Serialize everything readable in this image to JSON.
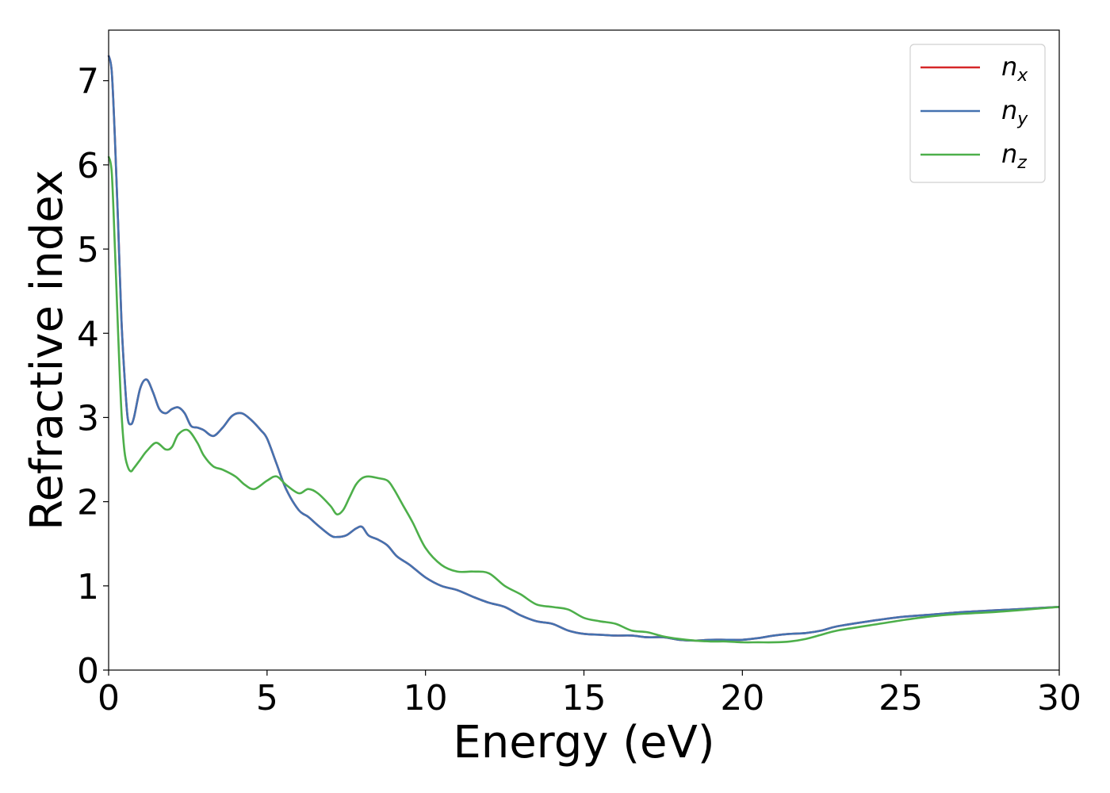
{
  "chart_data": {
    "type": "line",
    "title": "",
    "xlabel": "Energy (eV)",
    "ylabel": "Refractive index",
    "xlim": [
      0,
      30
    ],
    "ylim": [
      0,
      7.6
    ],
    "xticks": [
      0,
      5,
      10,
      15,
      20,
      25,
      30
    ],
    "yticks": [
      0,
      1,
      2,
      3,
      4,
      5,
      6,
      7
    ],
    "grid": false,
    "legend_position": "top-right",
    "series": [
      {
        "name": "n",
        "subscript": "x",
        "color": "#d62728",
        "x": [
          0,
          0.1,
          0.2,
          0.3,
          0.4,
          0.5,
          0.6,
          0.7,
          0.8,
          1.0,
          1.2,
          1.4,
          1.6,
          1.8,
          2.0,
          2.2,
          2.4,
          2.6,
          2.8,
          3.0,
          3.3,
          3.6,
          3.9,
          4.2,
          4.5,
          4.8,
          5.0,
          5.3,
          5.6,
          6.0,
          6.3,
          6.6,
          7.0,
          7.2,
          7.5,
          7.8,
          8.0,
          8.2,
          8.5,
          8.8,
          9.1,
          9.5,
          10.0,
          10.5,
          11.0,
          11.5,
          12.0,
          12.5,
          13.0,
          13.5,
          14.0,
          14.5,
          15.0,
          15.5,
          16.0,
          16.5,
          17.0,
          17.5,
          18.0,
          18.5,
          19.0,
          19.5,
          20.0,
          20.5,
          21.0,
          21.5,
          22.0,
          22.5,
          23.0,
          24.0,
          25.0,
          26.0,
          27.0,
          28.0,
          29.0,
          30.0
        ],
        "y": [
          7.3,
          7.1,
          6.3,
          5.3,
          4.2,
          3.5,
          3.0,
          2.92,
          3.0,
          3.35,
          3.45,
          3.3,
          3.1,
          3.05,
          3.1,
          3.12,
          3.05,
          2.9,
          2.88,
          2.85,
          2.78,
          2.88,
          3.02,
          3.05,
          2.97,
          2.85,
          2.75,
          2.45,
          2.15,
          1.9,
          1.82,
          1.72,
          1.6,
          1.58,
          1.6,
          1.68,
          1.7,
          1.6,
          1.55,
          1.48,
          1.35,
          1.25,
          1.1,
          1.0,
          0.95,
          0.87,
          0.8,
          0.75,
          0.65,
          0.58,
          0.55,
          0.47,
          0.43,
          0.42,
          0.41,
          0.41,
          0.39,
          0.39,
          0.36,
          0.35,
          0.36,
          0.36,
          0.36,
          0.38,
          0.41,
          0.43,
          0.44,
          0.47,
          0.52,
          0.58,
          0.63,
          0.66,
          0.69,
          0.71,
          0.73,
          0.75
        ]
      },
      {
        "name": "n",
        "subscript": "y",
        "color": "#4472b0",
        "x": [
          0,
          0.1,
          0.2,
          0.3,
          0.4,
          0.5,
          0.6,
          0.7,
          0.8,
          1.0,
          1.2,
          1.4,
          1.6,
          1.8,
          2.0,
          2.2,
          2.4,
          2.6,
          2.8,
          3.0,
          3.3,
          3.6,
          3.9,
          4.2,
          4.5,
          4.8,
          5.0,
          5.3,
          5.6,
          6.0,
          6.3,
          6.6,
          7.0,
          7.2,
          7.5,
          7.8,
          8.0,
          8.2,
          8.5,
          8.8,
          9.1,
          9.5,
          10.0,
          10.5,
          11.0,
          11.5,
          12.0,
          12.5,
          13.0,
          13.5,
          14.0,
          14.5,
          15.0,
          15.5,
          16.0,
          16.5,
          17.0,
          17.5,
          18.0,
          18.5,
          19.0,
          19.5,
          20.0,
          20.5,
          21.0,
          21.5,
          22.0,
          22.5,
          23.0,
          24.0,
          25.0,
          26.0,
          27.0,
          28.0,
          29.0,
          30.0
        ],
        "y": [
          7.3,
          7.1,
          6.3,
          5.3,
          4.2,
          3.5,
          3.0,
          2.92,
          3.0,
          3.35,
          3.45,
          3.3,
          3.1,
          3.05,
          3.1,
          3.12,
          3.05,
          2.9,
          2.88,
          2.85,
          2.78,
          2.88,
          3.02,
          3.05,
          2.97,
          2.85,
          2.75,
          2.45,
          2.15,
          1.9,
          1.82,
          1.72,
          1.6,
          1.58,
          1.6,
          1.68,
          1.7,
          1.6,
          1.55,
          1.48,
          1.35,
          1.25,
          1.1,
          1.0,
          0.95,
          0.87,
          0.8,
          0.75,
          0.65,
          0.58,
          0.55,
          0.47,
          0.43,
          0.42,
          0.41,
          0.41,
          0.39,
          0.39,
          0.36,
          0.35,
          0.36,
          0.36,
          0.36,
          0.38,
          0.41,
          0.43,
          0.44,
          0.47,
          0.52,
          0.58,
          0.63,
          0.66,
          0.69,
          0.71,
          0.73,
          0.75
        ]
      },
      {
        "name": "n",
        "subscript": "z",
        "color": "#4daf4a",
        "x": [
          0,
          0.1,
          0.2,
          0.3,
          0.4,
          0.5,
          0.6,
          0.7,
          0.8,
          1.0,
          1.2,
          1.5,
          1.8,
          2.0,
          2.2,
          2.5,
          2.8,
          3.0,
          3.3,
          3.6,
          4.0,
          4.3,
          4.6,
          5.0,
          5.3,
          5.6,
          6.0,
          6.3,
          6.6,
          7.0,
          7.2,
          7.4,
          7.6,
          7.8,
          8.0,
          8.2,
          8.5,
          8.8,
          9.0,
          9.3,
          9.6,
          10.0,
          10.5,
          11.0,
          11.5,
          12.0,
          12.5,
          13.0,
          13.5,
          14.0,
          14.5,
          15.0,
          15.5,
          16.0,
          16.5,
          17.0,
          17.5,
          18.0,
          18.5,
          19.0,
          19.5,
          20.0,
          20.5,
          21.0,
          21.5,
          22.0,
          22.5,
          23.0,
          24.0,
          25.0,
          26.0,
          27.0,
          28.0,
          29.0,
          30.0
        ],
        "y": [
          6.1,
          5.9,
          5.0,
          4.0,
          3.1,
          2.6,
          2.42,
          2.36,
          2.4,
          2.5,
          2.6,
          2.7,
          2.62,
          2.65,
          2.8,
          2.85,
          2.7,
          2.55,
          2.42,
          2.38,
          2.3,
          2.2,
          2.15,
          2.25,
          2.3,
          2.2,
          2.1,
          2.15,
          2.1,
          1.95,
          1.85,
          1.9,
          2.05,
          2.2,
          2.28,
          2.3,
          2.28,
          2.25,
          2.15,
          1.95,
          1.75,
          1.45,
          1.25,
          1.17,
          1.17,
          1.15,
          1.0,
          0.9,
          0.78,
          0.75,
          0.72,
          0.62,
          0.58,
          0.55,
          0.47,
          0.45,
          0.4,
          0.37,
          0.35,
          0.34,
          0.34,
          0.33,
          0.33,
          0.33,
          0.34,
          0.37,
          0.42,
          0.47,
          0.53,
          0.59,
          0.64,
          0.67,
          0.69,
          0.72,
          0.75
        ]
      }
    ]
  }
}
